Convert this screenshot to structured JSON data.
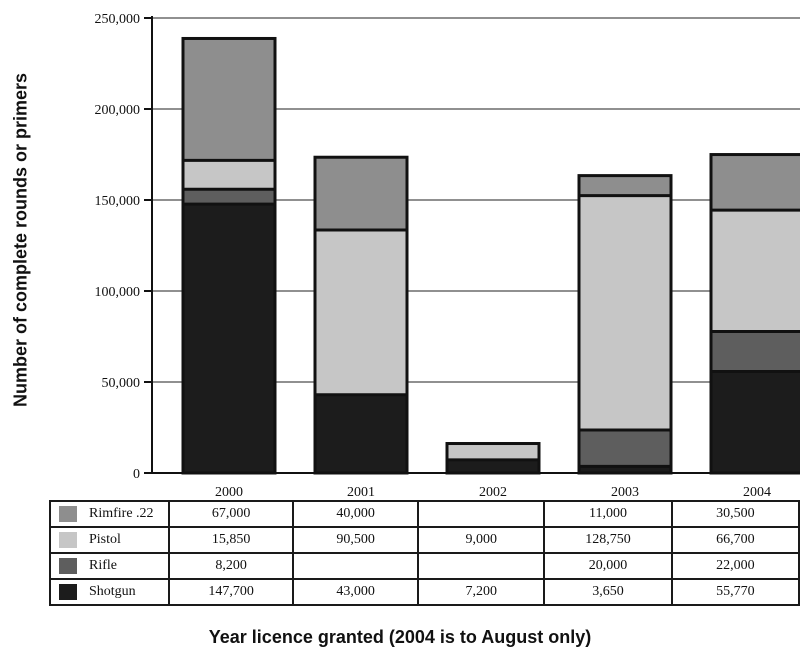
{
  "chart_data": {
    "type": "bar",
    "stacked": true,
    "categories": [
      "2000",
      "2001",
      "2002",
      "2003",
      "2004"
    ],
    "series": [
      {
        "name": "Shotgun",
        "color": "#1c1c1c",
        "values": [
          147700,
          43000,
          7200,
          3650,
          55770
        ],
        "labels": [
          "147,700",
          "43,000",
          "7,200",
          "3,650",
          "55,770"
        ]
      },
      {
        "name": "Rifle",
        "color": "#5e5e5e",
        "values": [
          8200,
          null,
          null,
          20000,
          22000
        ],
        "labels": [
          "8,200",
          "",
          "",
          "20,000",
          "22,000"
        ]
      },
      {
        "name": "Pistol",
        "color": "#c6c6c6",
        "values": [
          15850,
          90500,
          9000,
          128750,
          66700
        ],
        "labels": [
          "15,850",
          "90,500",
          "9,000",
          "128,750",
          "66,700"
        ]
      },
      {
        "name": "Rimfire .22",
        "color": "#8e8e8e",
        "values": [
          67000,
          40000,
          null,
          11000,
          30500
        ],
        "labels": [
          "67,000",
          "40,000",
          "",
          "11,000",
          "30,500"
        ]
      }
    ],
    "yticks": [
      "0",
      "50,000",
      "100,000",
      "150,000",
      "200,000",
      "250,000"
    ],
    "ylim": [
      0,
      250000
    ],
    "ylabel": "Number of complete rounds or primers",
    "xlabel": "Year licence granted (2004 is to August only)",
    "grid": true
  }
}
